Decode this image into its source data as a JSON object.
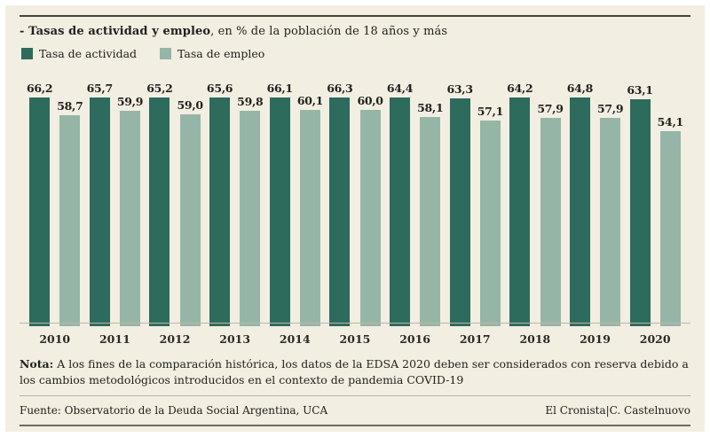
{
  "title": {
    "bold": "- Tasas de actividad y empleo",
    "rest": ", en % de la población de 18 años y más"
  },
  "legend": [
    {
      "label": "Tasa de actividad",
      "color": "#2d6b5c"
    },
    {
      "label": "Tasa de empleo",
      "color": "#95b6a6"
    }
  ],
  "chart_data": {
    "type": "bar",
    "title": "Tasas de actividad y empleo, en % de la población de 18 años y más",
    "categories": [
      "2010",
      "2011",
      "2012",
      "2013",
      "2014",
      "2015",
      "2016",
      "2017",
      "2018",
      "2019",
      "2020"
    ],
    "series": [
      {
        "name": "Tasa de actividad",
        "color": "#2d6b5c",
        "values": [
          66.2,
          65.7,
          65.2,
          65.6,
          66.1,
          66.3,
          64.4,
          63.3,
          64.2,
          64.8,
          63.1
        ]
      },
      {
        "name": "Tasa de empleo",
        "color": "#95b6a6",
        "values": [
          58.7,
          59.9,
          59.0,
          59.8,
          60.1,
          60.0,
          58.1,
          57.1,
          57.9,
          57.9,
          54.1
        ]
      }
    ],
    "value_format": "comma-decimal",
    "ylim": [
      0,
      68
    ],
    "grid": false,
    "legend_position": "top-left"
  },
  "note": {
    "bold": "Nota:",
    "text": " A los fines de la comparación histórica, los datos de la EDSA 2020 deben ser considerados con reserva debido a los cambios metodológicos introducidos en el contexto de pandemia COVID-19"
  },
  "footer": {
    "source": "Fuente: Observatorio de la Deuda Social Argentina, UCA",
    "credit": "El Cronista|C. Castelnuovo"
  }
}
